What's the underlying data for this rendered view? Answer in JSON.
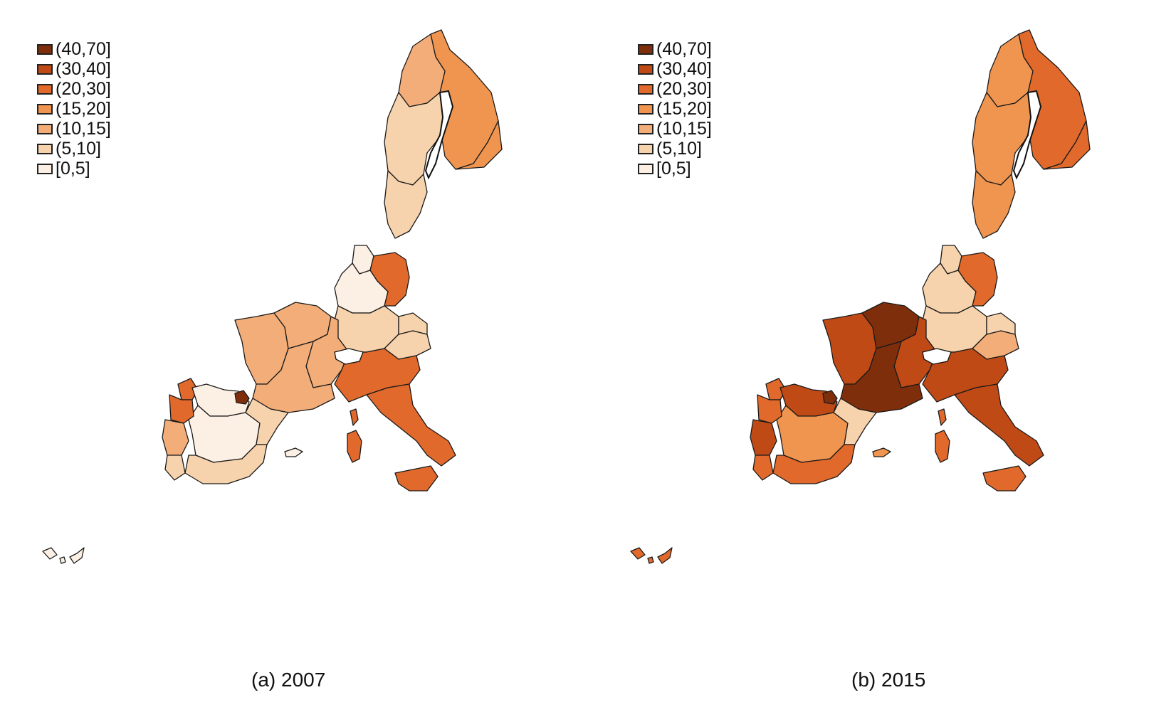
{
  "legend": {
    "classes": [
      {
        "label": "(40,70]",
        "color": "#7f2e0c"
      },
      {
        "label": "(30,40]",
        "color": "#c04a16"
      },
      {
        "label": "(20,30]",
        "color": "#e0692b"
      },
      {
        "label": "(15,20]",
        "color": "#ef9550"
      },
      {
        "label": "(10,15]",
        "color": "#f2ad79"
      },
      {
        "label": "(5,10]",
        "color": "#f7d3ad"
      },
      {
        "label": "[0,5]",
        "color": "#fcefe3"
      }
    ]
  },
  "panels": [
    {
      "caption": "(a)  2007",
      "region_classes": {
        "finland": 3,
        "finland_east": 3,
        "sweden_north": 4,
        "sweden_mid": 5,
        "sweden_south": 5,
        "denmark_area": 6,
        "germany_north": 6,
        "germany_south": 5,
        "poland_east": 2,
        "austria": 5,
        "czech": 5,
        "france_west": 4,
        "france_north": 4,
        "france_east": 4,
        "france_south": 4,
        "italy_north": 2,
        "italy_south": 2,
        "sicily": 2,
        "sardinia": 2,
        "corsica": 2,
        "spain_north": 6,
        "spain_central": 6,
        "spain_south": 5,
        "spain_east": 5,
        "basque": 0,
        "portugal_north": 2,
        "portugal_mid": 4,
        "portugal_south": 5,
        "galicia": 2,
        "balearic": 6,
        "canary": 6
      }
    },
    {
      "caption": "(b)  2015",
      "region_classes": {
        "finland": 2,
        "finland_east": 2,
        "sweden_north": 3,
        "sweden_mid": 3,
        "sweden_south": 3,
        "denmark_area": 5,
        "germany_north": 5,
        "germany_south": 5,
        "poland_east": 2,
        "austria": 4,
        "czech": 5,
        "france_west": 1,
        "france_north": 0,
        "france_east": 1,
        "france_south": 0,
        "italy_north": 1,
        "italy_south": 1,
        "sicily": 2,
        "sardinia": 2,
        "corsica": 2,
        "spain_north": 1,
        "spain_central": 3,
        "spain_south": 2,
        "spain_east": 5,
        "basque": 0,
        "portugal_north": 2,
        "portugal_mid": 1,
        "portugal_south": 2,
        "galicia": 2,
        "balearic": 3,
        "canary": 2
      }
    }
  ]
}
